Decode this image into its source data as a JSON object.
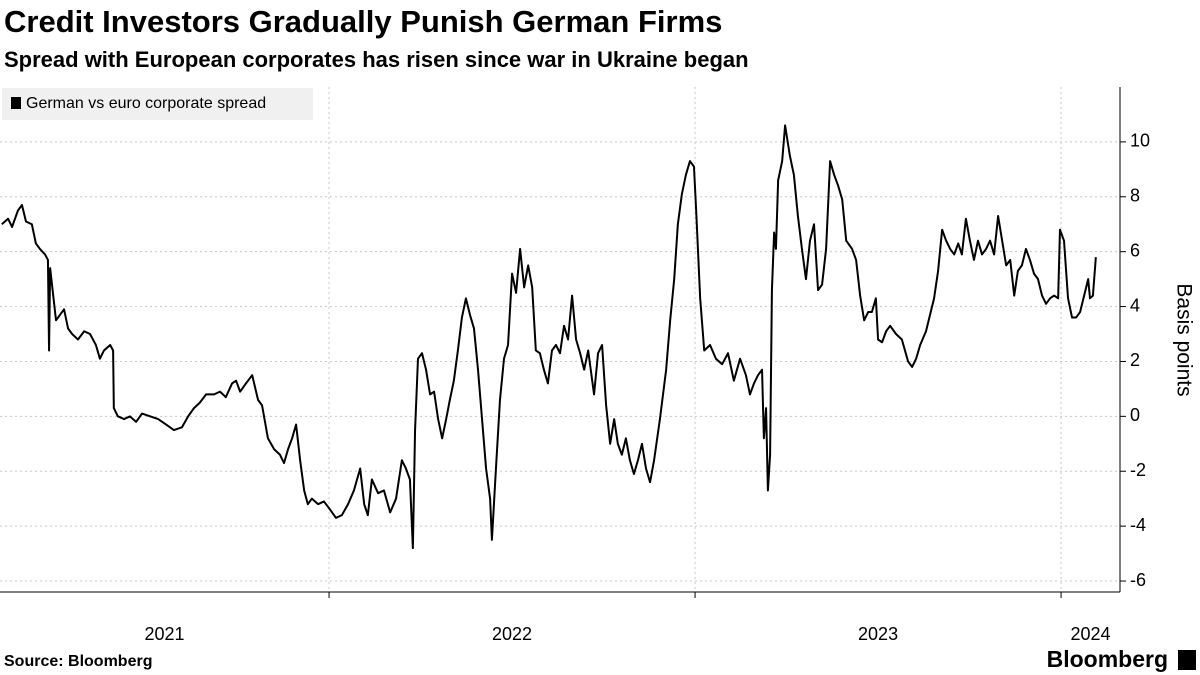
{
  "chart_data": {
    "type": "line",
    "title": "Credit Investors Gradually Punish German Firms",
    "subtitle": "Spread with European corporates has risen since war in Ukraine began",
    "y_label": "Basis points",
    "source": "Source: Bloomberg",
    "logo": "Bloomberg",
    "grid": true,
    "y_axis_side": "right",
    "legend": "top-left",
    "xlim": [
      2021.101,
      2024.161
    ],
    "xticks": [
      2021,
      2022,
      2023,
      2024
    ],
    "ylim": [
      -6.4,
      12
    ],
    "yticks": [
      -6,
      -4,
      -2,
      0,
      2,
      4,
      6,
      8,
      10
    ],
    "x": [
      2021.106,
      2021.123,
      2021.134,
      2021.15,
      2021.161,
      2021.172,
      2021.188,
      2021.199,
      2021.21,
      2021.224,
      2021.232,
      2021.235,
      2021.238,
      2021.254,
      2021.265,
      2021.276,
      2021.287,
      2021.298,
      2021.314,
      2021.331,
      2021.347,
      2021.363,
      2021.374,
      2021.385,
      2021.402,
      2021.41,
      2021.412,
      2021.423,
      2021.44,
      2021.456,
      2021.473,
      2021.489,
      2021.511,
      2021.533,
      2021.555,
      2021.576,
      2021.598,
      2021.615,
      2021.631,
      2021.647,
      2021.664,
      2021.686,
      2021.702,
      2021.718,
      2021.735,
      2021.746,
      2021.757,
      2021.773,
      2021.79,
      2021.806,
      2021.817,
      2021.833,
      2021.85,
      2021.866,
      2021.877,
      2021.888,
      2021.899,
      2021.91,
      2021.921,
      2021.932,
      2021.942,
      2021.953,
      2021.97,
      2021.986,
      2022.003,
      2022.019,
      2022.035,
      2022.052,
      2022.068,
      2022.085,
      2022.096,
      2022.106,
      2022.117,
      2022.134,
      2022.15,
      2022.167,
      2022.183,
      2022.199,
      2022.21,
      2022.221,
      2022.229,
      2022.235,
      2022.243,
      2022.254,
      2022.265,
      2022.276,
      2022.287,
      2022.298,
      2022.309,
      2022.32,
      2022.33,
      2022.341,
      2022.352,
      2022.363,
      2022.374,
      2022.385,
      2022.396,
      2022.407,
      2022.418,
      2022.429,
      2022.44,
      2022.445,
      2022.456,
      2022.467,
      2022.478,
      2022.489,
      2022.5,
      2022.511,
      2022.522,
      2022.533,
      2022.544,
      2022.555,
      2022.565,
      2022.576,
      2022.587,
      2022.598,
      2022.609,
      2022.62,
      2022.631,
      2022.642,
      2022.653,
      2022.664,
      2022.675,
      2022.686,
      2022.697,
      2022.708,
      2022.724,
      2022.735,
      2022.746,
      2022.757,
      2022.768,
      2022.779,
      2022.789,
      2022.8,
      2022.811,
      2022.822,
      2022.833,
      2022.844,
      2022.855,
      2022.866,
      2022.877,
      2022.888,
      2022.904,
      2022.921,
      2022.932,
      2022.943,
      2022.953,
      2022.964,
      2022.975,
      2022.986,
      2022.997,
      2023.003,
      2023.014,
      2023.025,
      2023.041,
      2023.057,
      2023.074,
      2023.09,
      2023.106,
      2023.123,
      2023.139,
      2023.15,
      2023.161,
      2023.172,
      2023.183,
      2023.188,
      2023.194,
      2023.199,
      2023.205,
      2023.21,
      2023.216,
      2023.221,
      2023.227,
      2023.238,
      2023.246,
      2023.259,
      2023.27,
      2023.281,
      2023.292,
      2023.303,
      2023.314,
      2023.325,
      2023.336,
      2023.347,
      2023.358,
      2023.369,
      2023.38,
      2023.391,
      2023.402,
      2023.413,
      2023.429,
      2023.44,
      2023.451,
      2023.462,
      2023.473,
      2023.483,
      2023.494,
      2023.5,
      2023.511,
      2023.522,
      2023.533,
      2023.549,
      2023.565,
      2023.582,
      2023.593,
      2023.604,
      2023.615,
      2023.631,
      2023.642,
      2023.653,
      2023.664,
      2023.675,
      2023.686,
      2023.697,
      2023.708,
      2023.719,
      2023.729,
      2023.74,
      2023.751,
      2023.762,
      2023.773,
      2023.784,
      2023.795,
      2023.806,
      2023.817,
      2023.828,
      2023.839,
      2023.85,
      2023.861,
      2023.872,
      2023.882,
      2023.893,
      2023.904,
      2023.915,
      2023.926,
      2023.937,
      2023.948,
      2023.959,
      2023.97,
      2023.981,
      2023.992,
      2023.997,
      2024.008,
      2024.019,
      2024.03,
      2024.041,
      2024.052,
      2024.063,
      2024.074,
      2024.079,
      2024.087,
      2024.095
    ],
    "series": [
      {
        "name": "German vs euro corporate spread",
        "color": "#000000",
        "values": [
          7.0,
          7.2,
          6.9,
          7.5,
          7.7,
          7.1,
          7.0,
          6.3,
          6.1,
          5.9,
          5.7,
          2.4,
          5.4,
          3.5,
          3.7,
          3.9,
          3.2,
          3.0,
          2.8,
          3.1,
          3.0,
          2.6,
          2.1,
          2.4,
          2.6,
          2.4,
          0.3,
          0.0,
          -0.1,
          0.0,
          -0.2,
          0.1,
          0.0,
          -0.1,
          -0.3,
          -0.5,
          -0.4,
          0.0,
          0.3,
          0.5,
          0.8,
          0.8,
          0.9,
          0.7,
          1.2,
          1.3,
          0.9,
          1.2,
          1.5,
          0.6,
          0.4,
          -0.8,
          -1.2,
          -1.4,
          -1.7,
          -1.2,
          -0.8,
          -0.3,
          -1.6,
          -2.7,
          -3.2,
          -3.0,
          -3.2,
          -3.1,
          -3.4,
          -3.7,
          -3.6,
          -3.2,
          -2.7,
          -1.9,
          -3.2,
          -3.6,
          -2.3,
          -2.8,
          -2.7,
          -3.5,
          -3.0,
          -1.6,
          -1.9,
          -2.3,
          -4.8,
          -0.5,
          2.1,
          2.3,
          1.7,
          0.8,
          0.9,
          -0.1,
          -0.8,
          -0.1,
          0.6,
          1.3,
          2.4,
          3.6,
          4.3,
          3.7,
          3.2,
          1.7,
          -0.1,
          -1.9,
          -3.0,
          -4.5,
          -1.9,
          0.6,
          2.1,
          2.6,
          5.2,
          4.5,
          6.1,
          4.7,
          5.5,
          4.7,
          2.4,
          2.3,
          1.7,
          1.2,
          2.4,
          2.6,
          2.3,
          3.3,
          2.8,
          4.4,
          2.8,
          2.3,
          1.7,
          2.4,
          0.8,
          2.3,
          2.6,
          0.4,
          -1.0,
          -0.1,
          -1.0,
          -1.4,
          -0.8,
          -1.6,
          -2.1,
          -1.6,
          -1.0,
          -1.9,
          -2.4,
          -1.6,
          -0.1,
          1.7,
          3.5,
          5.0,
          7.0,
          8.1,
          8.8,
          9.3,
          9.1,
          7.5,
          4.3,
          2.4,
          2.6,
          2.1,
          1.9,
          2.3,
          1.3,
          2.1,
          1.5,
          0.8,
          1.2,
          1.5,
          1.7,
          -0.8,
          0.3,
          -2.7,
          -1.4,
          4.6,
          6.7,
          6.1,
          8.6,
          9.3,
          10.6,
          9.5,
          8.8,
          7.3,
          6.1,
          5.0,
          6.4,
          7.0,
          4.6,
          4.8,
          6.1,
          9.3,
          8.8,
          8.4,
          7.9,
          6.4,
          6.1,
          5.7,
          4.4,
          3.5,
          3.8,
          3.8,
          4.3,
          2.8,
          2.7,
          3.1,
          3.3,
          3.0,
          2.8,
          2.0,
          1.8,
          2.1,
          2.6,
          3.1,
          3.7,
          4.3,
          5.3,
          6.8,
          6.4,
          6.1,
          5.9,
          6.3,
          5.9,
          7.2,
          6.4,
          5.7,
          6.4,
          5.9,
          6.1,
          6.4,
          5.9,
          7.3,
          6.4,
          5.5,
          5.7,
          4.4,
          5.3,
          5.5,
          6.1,
          5.7,
          5.2,
          5.0,
          4.4,
          4.1,
          4.3,
          4.4,
          4.3,
          6.8,
          6.4,
          4.3,
          3.6,
          3.6,
          3.8,
          4.4,
          5.0,
          4.3,
          4.4,
          5.8
        ]
      }
    ]
  }
}
